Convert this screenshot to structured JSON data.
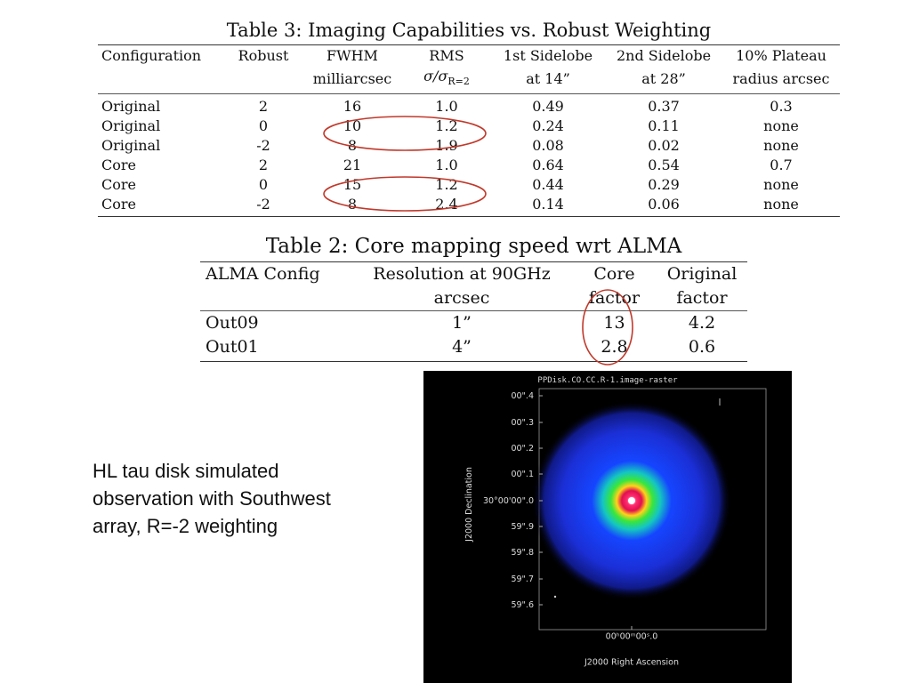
{
  "table3": {
    "caption": "Table 3: Imaging Capabilities vs. Robust Weighting",
    "header_row1": [
      "Configuration",
      "Robust",
      "FWHM",
      "RMS",
      "1st Sidelobe",
      "2nd Sidelobe",
      "10% Plateau"
    ],
    "header_row2": [
      "",
      "",
      "milliarcsec",
      "σ/σ",
      "at 14”",
      "at 28”",
      "radius arcsec"
    ],
    "rms_subscript": "R=2",
    "rows": [
      [
        "Original",
        "2",
        "16",
        "1.0",
        "0.49",
        "0.37",
        "0.3"
      ],
      [
        "Original",
        "0",
        "10",
        "1.2",
        "0.24",
        "0.11",
        "none"
      ],
      [
        "Original",
        "-2",
        "8",
        "1.9",
        "0.08",
        "0.02",
        "none"
      ],
      [
        "Core",
        "2",
        "21",
        "1.0",
        "0.64",
        "0.54",
        "0.7"
      ],
      [
        "Core",
        "0",
        "15",
        "1.2",
        "0.44",
        "0.29",
        "none"
      ],
      [
        "Core",
        "-2",
        "8",
        "2.4",
        "0.14",
        "0.06",
        "none"
      ]
    ]
  },
  "table2": {
    "caption": "Table 2: Core mapping speed wrt ALMA",
    "header_row1": [
      "ALMA Config",
      "Resolution at 90GHz",
      "Core",
      "Original"
    ],
    "header_row2": [
      "",
      "arcsec",
      "factor",
      "factor"
    ],
    "rows": [
      [
        "Out09",
        "1”",
        "13",
        "4.2"
      ],
      [
        "Out01",
        "4”",
        "2.8",
        "0.6"
      ]
    ]
  },
  "caption": "HL tau disk simulated observation with Southwest array, R=-2 weighting",
  "sky_image": {
    "title": "PPDisk.CO.CC.R-1.image-raster",
    "y_ticks": [
      "00\".4",
      "00\".3",
      "00\".2",
      "00\".1",
      "30°00'00\".0",
      "59\".9",
      "59\".8",
      "59\".7",
      "59\".6"
    ],
    "x_tick": "00ʰ00ᵐ00ˢ.0",
    "x_label": "J2000 Right Ascension",
    "y_label": "J2000 Declination"
  },
  "colors": {
    "annotation": "#c0392b",
    "sky_background": "#000000",
    "axis_text": "#dddddd"
  }
}
